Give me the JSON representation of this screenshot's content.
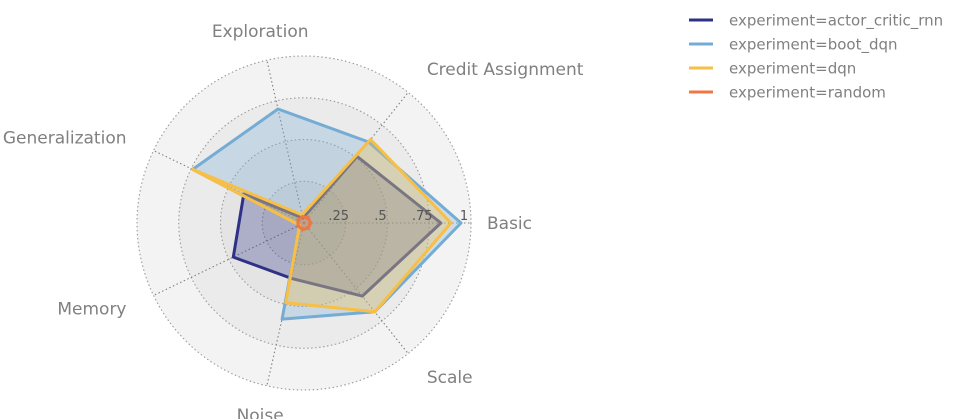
{
  "chart_data": {
    "type": "radar",
    "axes": [
      "Basic",
      "Credit Assignment",
      "Exploration",
      "Generalization",
      "Memory",
      "Noise",
      "Scale"
    ],
    "radial_ticks": [
      ".25",
      ".5",
      ".75",
      "1"
    ],
    "rmax": 1.0,
    "grid": true,
    "legend_placement": "top-right",
    "series": [
      {
        "name": "experiment=actor_critic_rnn",
        "color": "#2e3185",
        "values": [
          0.82,
          0.51,
          0.03,
          0.4,
          0.47,
          0.34,
          0.56
        ]
      },
      {
        "name": "experiment=boot_dqn",
        "color": "#74acd4",
        "values": [
          0.94,
          0.62,
          0.7,
          0.74,
          0.03,
          0.59,
          0.68
        ]
      },
      {
        "name": "experiment=dqn",
        "color": "#f7bf45",
        "values": [
          0.88,
          0.64,
          0.05,
          0.74,
          0.03,
          0.49,
          0.68
        ]
      },
      {
        "name": "experiment=random",
        "color": "#ee7744",
        "values": [
          0.04,
          0.04,
          0.04,
          0.04,
          0.04,
          0.04,
          0.04
        ]
      }
    ]
  }
}
